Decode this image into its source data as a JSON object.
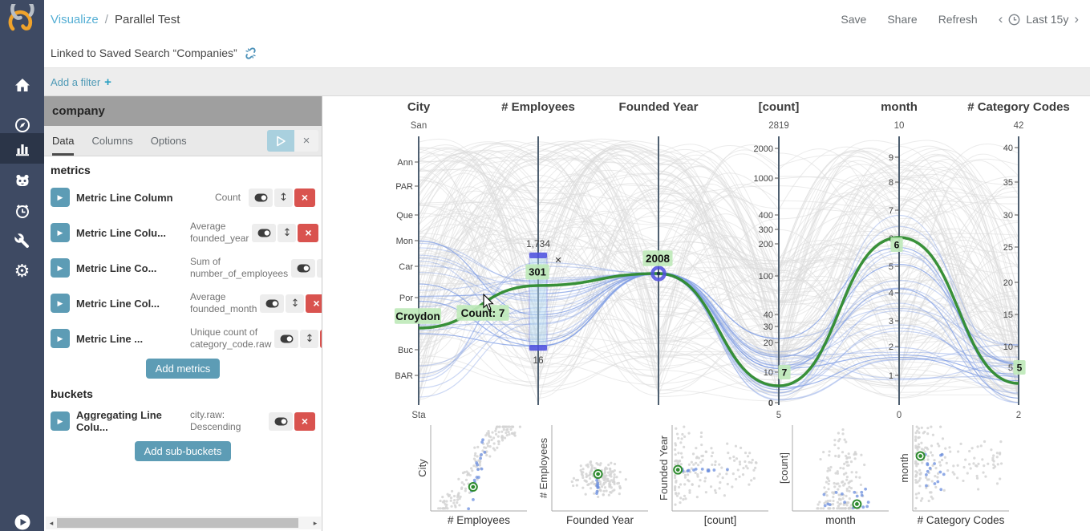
{
  "sidebar": {
    "icons": [
      "siren-logo",
      "home",
      "compass",
      "bar-chart",
      "face",
      "history-clock",
      "wrench",
      "gear",
      "play-circle"
    ]
  },
  "topbar": {
    "breadcrumb": {
      "section": "Visualize",
      "separator": "/",
      "page": "Parallel Test"
    },
    "actions": {
      "save": "Save",
      "share": "Share",
      "refresh": "Refresh"
    },
    "timepicker": {
      "prev": "‹",
      "label": "Last 15y",
      "next": "›"
    }
  },
  "linked_row": {
    "text": "Linked to Saved Search “Companies”"
  },
  "filter_row": {
    "label": "Add a filter",
    "plus": "+"
  },
  "editor": {
    "title": "company",
    "tabs": [
      "Data",
      "Columns",
      "Options"
    ],
    "metrics_heading": "metrics",
    "metrics": [
      {
        "label": "Metric Line Column",
        "desc": "Count"
      },
      {
        "label": "Metric Line Colu...",
        "desc": "Average founded_year"
      },
      {
        "label": "Metric Line Co...",
        "desc": "Sum of number_of_employees"
      },
      {
        "label": "Metric Line Col...",
        "desc": "Average founded_month"
      },
      {
        "label": "Metric Line ...",
        "desc": "Unique count of category_code.raw"
      }
    ],
    "add_metrics_label": "Add metrics",
    "buckets_heading": "buckets",
    "buckets": [
      {
        "label": "Aggregating Line Colu...",
        "desc": "city.raw: Descending"
      }
    ],
    "add_subbuckets_label": "Add sub-buckets"
  },
  "chart_data": {
    "type": "parallel-coordinates",
    "axes": [
      {
        "label": "City",
        "top": "San",
        "bottom": "Sta",
        "ticks": [
          "Ann",
          "PAR",
          "Que",
          "Mon",
          "Car",
          "Por",
          "Buc",
          "BAR"
        ],
        "highlight_label": "Croydon"
      },
      {
        "label": "# Employees",
        "brush": {
          "top": "1,734",
          "bottom": "16",
          "highlight_label": "301"
        }
      },
      {
        "label": "Founded Year",
        "highlight_label": "2008"
      },
      {
        "label": "[count]",
        "top": "2819",
        "bottom": "5",
        "ticks": [
          "2000",
          "1000",
          "400",
          "300",
          "200",
          "100",
          "40",
          "30",
          "20",
          "10",
          "0"
        ],
        "highlight_label": "7"
      },
      {
        "label": "month",
        "top": "10",
        "bottom": "0",
        "ticks": [
          "9",
          "8",
          "7",
          "6",
          "5",
          "4",
          "3",
          "2",
          "1"
        ],
        "highlight_label": "6"
      },
      {
        "label": "# Category Codes",
        "top": "42",
        "bottom": "2",
        "ticks": [
          "40",
          "35",
          "30",
          "25",
          "20",
          "15",
          "10",
          "5"
        ],
        "highlight_label": "5"
      }
    ],
    "hover_tooltip": "Count: 7",
    "brush_remove": "×",
    "selected_values": {
      "City": "Croydon",
      "# Employees": "301",
      "Founded Year": "2008",
      "[count]": "7",
      "month": "6",
      "# Category Codes": "5"
    },
    "colors": {
      "selected_line": "#2e8b2e",
      "highlight_lines": "#7e9ce4",
      "base_lines": "#dadada",
      "axis": "#4e5f70",
      "brush_fill": "#aed6f0",
      "brush_handle": "#4545dd",
      "label_bg": "#bfe9ba"
    },
    "scatter_matrix": [
      {
        "y_label": "City",
        "x_label": "# Employees"
      },
      {
        "y_label": "# Employees",
        "x_label": "Founded Year"
      },
      {
        "y_label": "Founded Year",
        "x_label": "[count]"
      },
      {
        "y_label": "[count]",
        "x_label": "month"
      },
      {
        "y_label": "month",
        "x_label": "# Category Codes"
      }
    ]
  }
}
